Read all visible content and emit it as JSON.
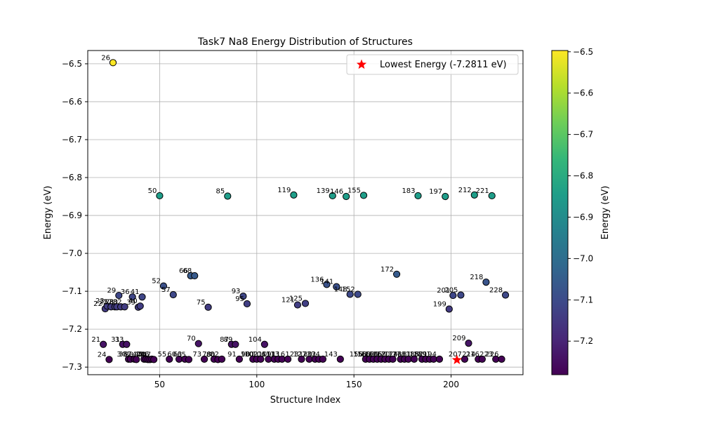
{
  "chart_data": {
    "type": "scatter",
    "title": "Task7 Na8 Energy Distribution of Structures",
    "xlabel": "Structure Index",
    "ylabel": "Energy (eV)",
    "xlim": [
      13,
      237
    ],
    "ylim": [
      -7.32,
      -6.465
    ],
    "xticks": [
      "50",
      "100",
      "150",
      "200"
    ],
    "yticks": [
      "−6.5",
      "−6.6",
      "−6.7",
      "−6.8",
      "−6.9",
      "−7.0",
      "−7.1",
      "−7.2",
      "−7.3"
    ],
    "grid": true,
    "legend": {
      "label": "Lowest Energy (-7.2811 eV)",
      "placement": "upper-right"
    },
    "lowest": {
      "x": 203,
      "y": -7.2811
    },
    "colorbar": {
      "label": "Energy (eV)",
      "range": [
        -7.2811,
        -6.497
      ],
      "ticks": [
        "−6.5",
        "−6.6",
        "−6.7",
        "−6.8",
        "−6.9",
        "−7.0",
        "−7.1",
        "−7.2"
      ]
    },
    "points": [
      {
        "x": 21,
        "y": -7.24,
        "label": "21"
      },
      {
        "x": 22,
        "y": -7.146,
        "label": "22"
      },
      {
        "x": 23,
        "y": -7.139,
        "label": "23"
      },
      {
        "x": 24,
        "y": -7.28,
        "label": "24"
      },
      {
        "x": 25,
        "y": -7.141,
        "label": "25"
      },
      {
        "x": 26,
        "y": -6.497,
        "label": "26"
      },
      {
        "x": 27,
        "y": -7.141,
        "label": "27"
      },
      {
        "x": 28,
        "y": -7.141,
        "label": "28"
      },
      {
        "x": 29,
        "y": -7.111,
        "label": "29"
      },
      {
        "x": 30,
        "y": -7.141,
        "label": "30"
      },
      {
        "x": 31,
        "y": -7.24,
        "label": "31"
      },
      {
        "x": 32,
        "y": -7.141,
        "label": "32"
      },
      {
        "x": 33,
        "y": -7.24,
        "label": "33"
      },
      {
        "x": 34,
        "y": -7.279,
        "label": "34"
      },
      {
        "x": 35,
        "y": -7.279,
        "label": "35"
      },
      {
        "x": 36,
        "y": -7.115,
        "label": "36"
      },
      {
        "x": 37,
        "y": -7.279,
        "label": "37"
      },
      {
        "x": 38,
        "y": -7.28,
        "label": "38"
      },
      {
        "x": 39,
        "y": -7.142,
        "label": "39"
      },
      {
        "x": 40,
        "y": -7.139,
        "label": "40"
      },
      {
        "x": 41,
        "y": -7.115,
        "label": "41"
      },
      {
        "x": 42,
        "y": -7.279,
        "label": "42"
      },
      {
        "x": 43,
        "y": -7.279,
        "label": "43"
      },
      {
        "x": 44,
        "y": -7.28,
        "label": "44"
      },
      {
        "x": 45,
        "y": -7.28,
        "label": "45"
      },
      {
        "x": 46,
        "y": -7.279,
        "label": "46"
      },
      {
        "x": 47,
        "y": -7.28,
        "label": "47"
      },
      {
        "x": 50,
        "y": -6.848,
        "label": "50"
      },
      {
        "x": 52,
        "y": -7.086,
        "label": "52"
      },
      {
        "x": 55,
        "y": -7.279,
        "label": "55"
      },
      {
        "x": 57,
        "y": -7.109,
        "label": "57"
      },
      {
        "x": 60,
        "y": -7.279,
        "label": "60"
      },
      {
        "x": 63,
        "y": -7.279,
        "label": "63"
      },
      {
        "x": 65,
        "y": -7.28,
        "label": "65"
      },
      {
        "x": 66,
        "y": -7.059,
        "label": "66"
      },
      {
        "x": 68,
        "y": -7.059,
        "label": "68"
      },
      {
        "x": 70,
        "y": -7.238,
        "label": "70"
      },
      {
        "x": 73,
        "y": -7.279,
        "label": "73"
      },
      {
        "x": 75,
        "y": -7.142,
        "label": "75"
      },
      {
        "x": 78,
        "y": -7.279,
        "label": "78"
      },
      {
        "x": 80,
        "y": -7.28,
        "label": "80"
      },
      {
        "x": 82,
        "y": -7.279,
        "label": "82"
      },
      {
        "x": 85,
        "y": -6.849,
        "label": "85"
      },
      {
        "x": 87,
        "y": -7.24,
        "label": "87"
      },
      {
        "x": 89,
        "y": -7.24,
        "label": "89"
      },
      {
        "x": 91,
        "y": -7.279,
        "label": "91"
      },
      {
        "x": 93,
        "y": -7.113,
        "label": "93"
      },
      {
        "x": 95,
        "y": -7.133,
        "label": "95"
      },
      {
        "x": 98,
        "y": -7.279,
        "label": "98"
      },
      {
        "x": 100,
        "y": -7.279,
        "label": "100"
      },
      {
        "x": 102,
        "y": -7.279,
        "label": "102"
      },
      {
        "x": 104,
        "y": -7.24,
        "label": "104"
      },
      {
        "x": 106,
        "y": -7.279,
        "label": "106"
      },
      {
        "x": 109,
        "y": -7.279,
        "label": "109"
      },
      {
        "x": 111,
        "y": -7.279,
        "label": "111"
      },
      {
        "x": 113,
        "y": -7.279,
        "label": "113"
      },
      {
        "x": 116,
        "y": -7.279,
        "label": "116"
      },
      {
        "x": 119,
        "y": -6.846,
        "label": "119"
      },
      {
        "x": 121,
        "y": -7.136,
        "label": "121"
      },
      {
        "x": 123,
        "y": -7.279,
        "label": "123"
      },
      {
        "x": 125,
        "y": -7.132,
        "label": "125"
      },
      {
        "x": 127,
        "y": -7.279,
        "label": "127"
      },
      {
        "x": 130,
        "y": -7.279,
        "label": "130"
      },
      {
        "x": 132,
        "y": -7.279,
        "label": "132"
      },
      {
        "x": 134,
        "y": -7.279,
        "label": "134"
      },
      {
        "x": 136,
        "y": -7.082,
        "label": "136"
      },
      {
        "x": 139,
        "y": -6.848,
        "label": "139"
      },
      {
        "x": 141,
        "y": -7.088,
        "label": "141"
      },
      {
        "x": 143,
        "y": -7.279,
        "label": "143"
      },
      {
        "x": 146,
        "y": -6.85,
        "label": "146"
      },
      {
        "x": 148,
        "y": -7.108,
        "label": "148"
      },
      {
        "x": 152,
        "y": -7.108,
        "label": "152"
      },
      {
        "x": 155,
        "y": -6.847,
        "label": "155"
      },
      {
        "x": 156,
        "y": -7.279,
        "label": "156"
      },
      {
        "x": 158,
        "y": -7.279,
        "label": "158"
      },
      {
        "x": 160,
        "y": -7.279,
        "label": "160"
      },
      {
        "x": 162,
        "y": -7.279,
        "label": "162"
      },
      {
        "x": 164,
        "y": -7.279,
        "label": "164"
      },
      {
        "x": 166,
        "y": -7.279,
        "label": "166"
      },
      {
        "x": 168,
        "y": -7.279,
        "label": "168"
      },
      {
        "x": 170,
        "y": -7.279,
        "label": "170"
      },
      {
        "x": 172,
        "y": -7.055,
        "label": "172"
      },
      {
        "x": 174,
        "y": -7.279,
        "label": "174"
      },
      {
        "x": 176,
        "y": -7.279,
        "label": "176"
      },
      {
        "x": 178,
        "y": -7.279,
        "label": "178"
      },
      {
        "x": 181,
        "y": -7.279,
        "label": "181"
      },
      {
        "x": 183,
        "y": -6.848,
        "label": "183"
      },
      {
        "x": 185,
        "y": -7.279,
        "label": "185"
      },
      {
        "x": 187,
        "y": -7.279,
        "label": "187"
      },
      {
        "x": 189,
        "y": -7.279,
        "label": "189"
      },
      {
        "x": 191,
        "y": -7.279,
        "label": "191"
      },
      {
        "x": 194,
        "y": -7.279,
        "label": "194"
      },
      {
        "x": 197,
        "y": -6.85,
        "label": "197"
      },
      {
        "x": 199,
        "y": -7.147,
        "label": "199"
      },
      {
        "x": 201,
        "y": -7.111,
        "label": "201"
      },
      {
        "x": 205,
        "y": -7.11,
        "label": "205"
      },
      {
        "x": 207,
        "y": -7.279,
        "label": "207"
      },
      {
        "x": 209,
        "y": -7.237,
        "label": "209"
      },
      {
        "x": 212,
        "y": -6.846,
        "label": "212"
      },
      {
        "x": 214,
        "y": -7.279,
        "label": "214"
      },
      {
        "x": 216,
        "y": -7.279,
        "label": "216"
      },
      {
        "x": 218,
        "y": -7.076,
        "label": "218"
      },
      {
        "x": 221,
        "y": -6.848,
        "label": "221"
      },
      {
        "x": 223,
        "y": -7.279,
        "label": "223"
      },
      {
        "x": 226,
        "y": -7.279,
        "label": "226"
      },
      {
        "x": 228,
        "y": -7.11,
        "label": "228"
      }
    ]
  },
  "colors": {
    "viridis": [
      "#440154",
      "#482878",
      "#3e4989",
      "#31688e",
      "#26828e",
      "#1f9e89",
      "#35b779",
      "#6ece58",
      "#b5de2b",
      "#fde725"
    ],
    "lowest_marker": "#ff0000",
    "grid": "#b0b0b0"
  }
}
